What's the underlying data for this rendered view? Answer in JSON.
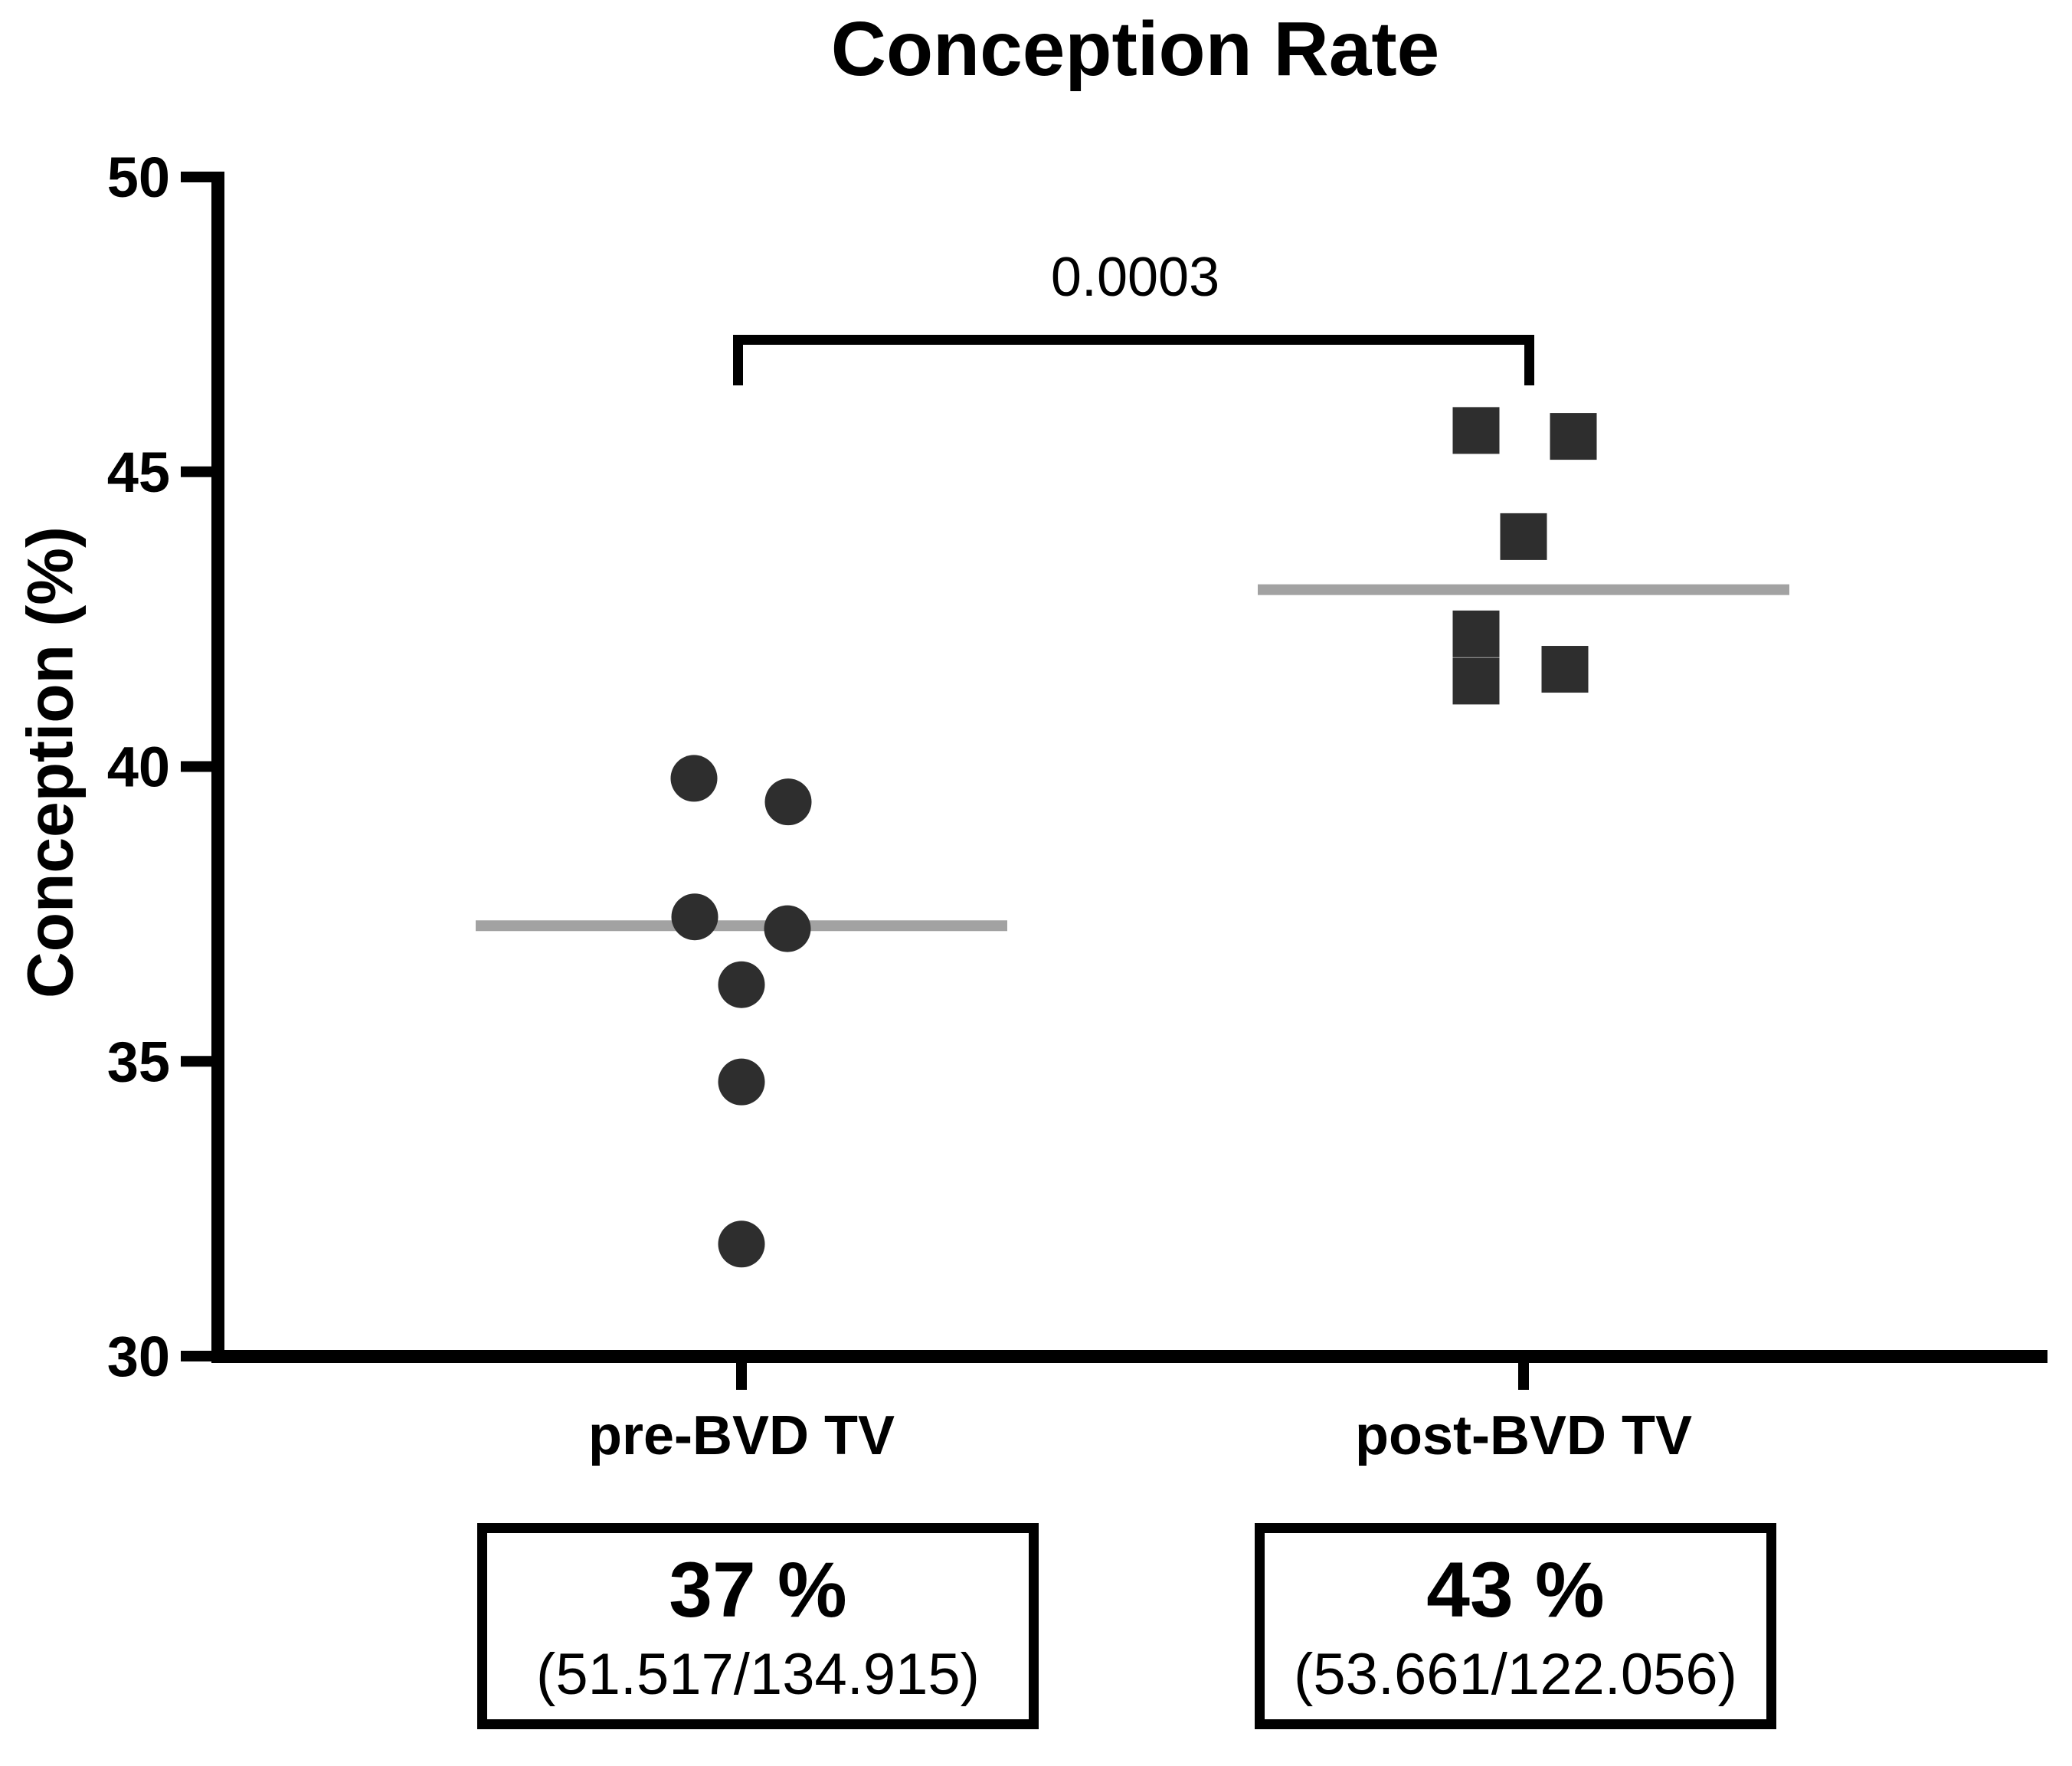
{
  "title": "Conception Rate",
  "chart_data": {
    "type": "scatter",
    "title": "Conception Rate",
    "xlabel": "",
    "ylabel": "Conception (%)",
    "ylim": [
      30,
      50
    ],
    "yticks": [
      30,
      35,
      40,
      45,
      50
    ],
    "grid": false,
    "legend": "none",
    "groups": [
      {
        "label": "pre-BVD TV",
        "marker": "circle",
        "mean": 37.3,
        "values": [
          39.8,
          39.4,
          37.45,
          37.25,
          36.3,
          34.65,
          31.9
        ],
        "points": [
          {
            "value": 39.8,
            "dx": -62
          },
          {
            "value": 39.4,
            "dx": 61
          },
          {
            "value": 37.45,
            "dx": -61
          },
          {
            "value": 37.25,
            "dx": 60
          },
          {
            "value": 36.3,
            "dx": 0
          },
          {
            "value": 34.65,
            "dx": 0
          },
          {
            "value": 31.9,
            "dx": 0
          }
        ],
        "summary": {
          "percent": "37 %",
          "fraction": "(51.517/134.915)"
        }
      },
      {
        "label": "post-BVD TV",
        "marker": "square",
        "mean": 43.0,
        "values": [
          45.7,
          45.6,
          43.9,
          42.25,
          41.45,
          41.65
        ],
        "points": [
          {
            "value": 45.7,
            "dx": -62
          },
          {
            "value": 45.6,
            "dx": 65
          },
          {
            "value": 43.9,
            "dx": 0
          },
          {
            "value": 42.25,
            "dx": -62
          },
          {
            "value": 41.45,
            "dx": -62
          },
          {
            "value": 41.65,
            "dx": 54
          }
        ],
        "summary": {
          "percent": "43 %",
          "fraction": "(53.661/122.056)"
        }
      }
    ],
    "significance": {
      "p": "0.0003",
      "between": [
        "pre-BVD TV",
        "post-BVD TV"
      ]
    },
    "colors": {
      "marker": "#2e2e2e",
      "mean_line": "#a2a2a2",
      "axis": "#000000"
    }
  }
}
